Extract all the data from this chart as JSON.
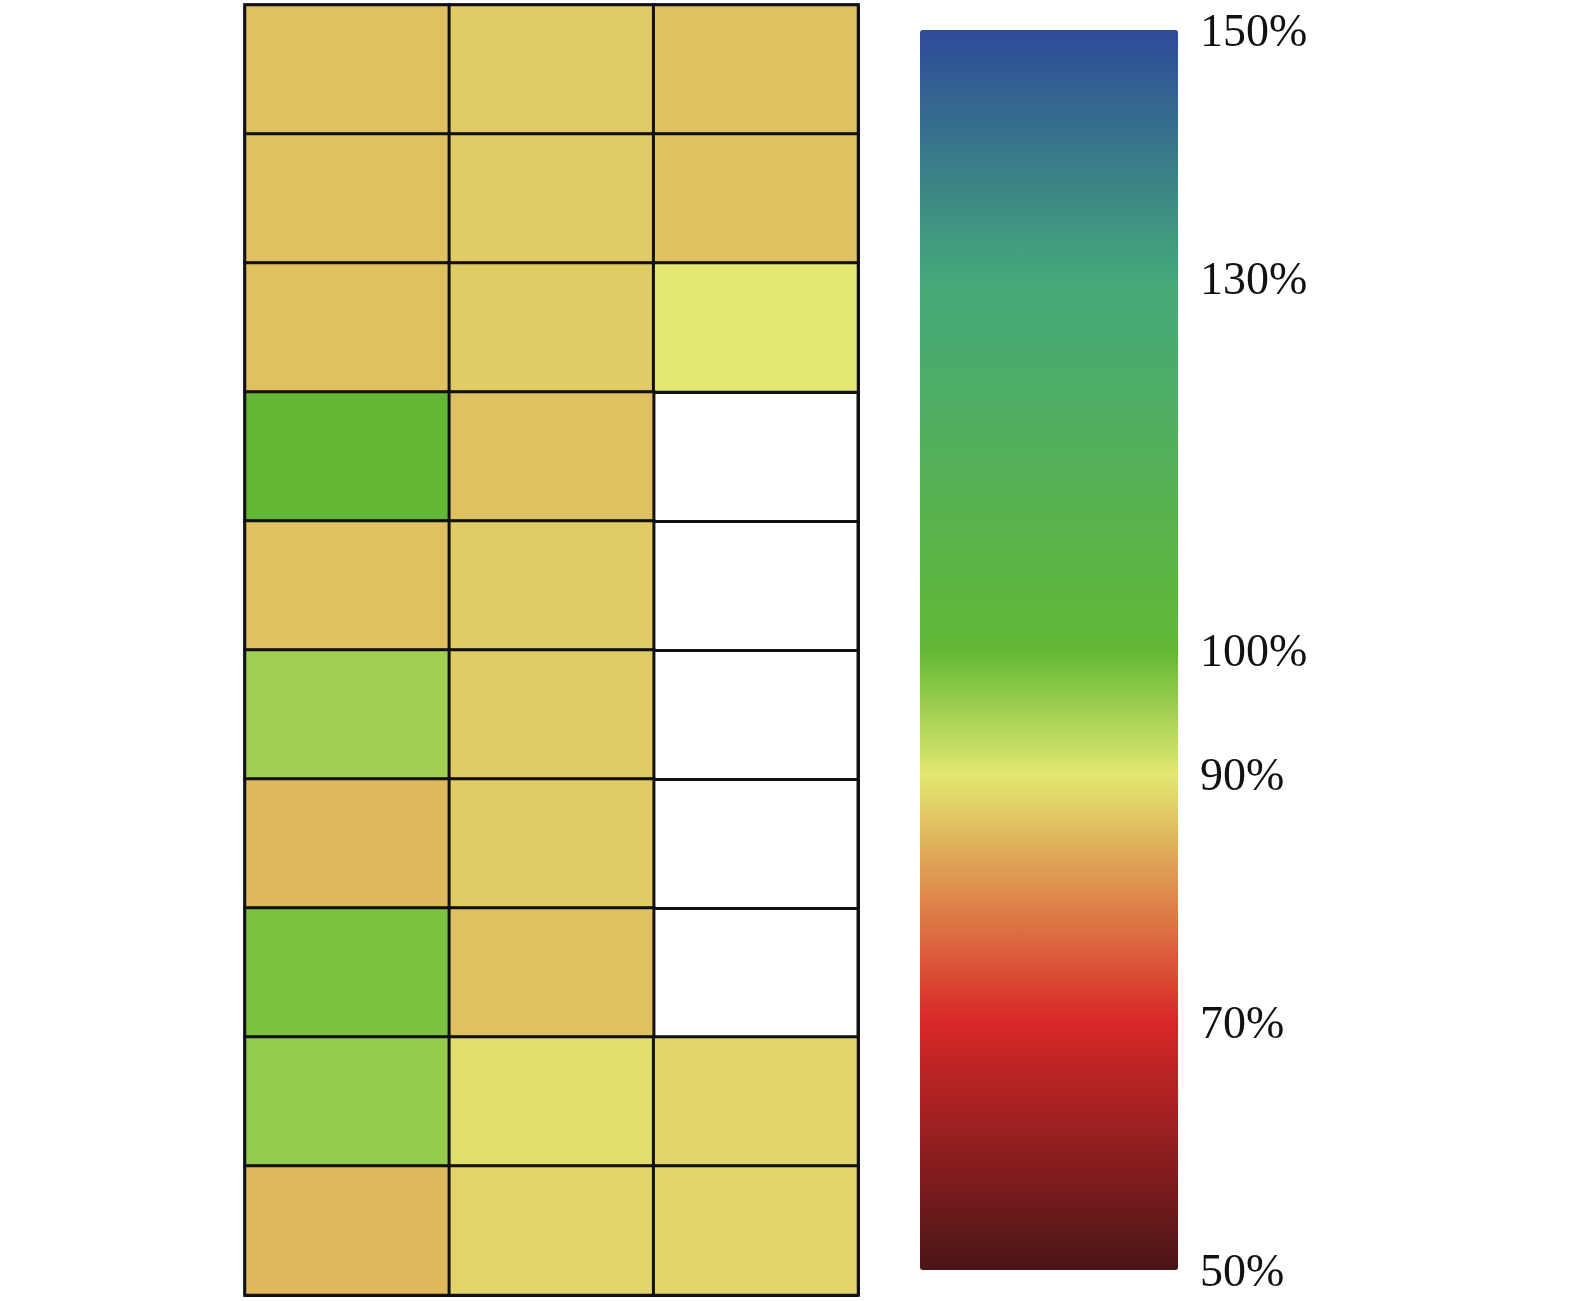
{
  "chart_data": {
    "type": "heatmap",
    "categories": [
      null,
      null,
      null
    ],
    "y_categories": [
      null,
      null,
      null,
      null,
      null,
      null,
      null,
      null,
      null,
      null
    ],
    "cells": [
      [
        86,
        87,
        86
      ],
      [
        86,
        87,
        86
      ],
      [
        86,
        87,
        90
      ],
      [
        100,
        86,
        null
      ],
      [
        86,
        87,
        null
      ],
      [
        95,
        87,
        null
      ],
      [
        85,
        87,
        null
      ],
      [
        98,
        86,
        null
      ],
      [
        96,
        89,
        88
      ],
      [
        85,
        88,
        88
      ]
    ],
    "clim": [
      50,
      150
    ],
    "cticks": [
      {
        "value": 50,
        "label": "50%"
      },
      {
        "value": 70,
        "label": "70%"
      },
      {
        "value": 90,
        "label": "90%"
      },
      {
        "value": 100,
        "label": "100%"
      },
      {
        "value": 130,
        "label": "130%"
      },
      {
        "value": 150,
        "label": "150%"
      }
    ],
    "colors": [
      "#4a1517",
      "#d92727",
      "#e2e870",
      "#62b835",
      "#44a87a",
      "#2e4a9a"
    ],
    "grid": true,
    "tick_labels": false
  }
}
